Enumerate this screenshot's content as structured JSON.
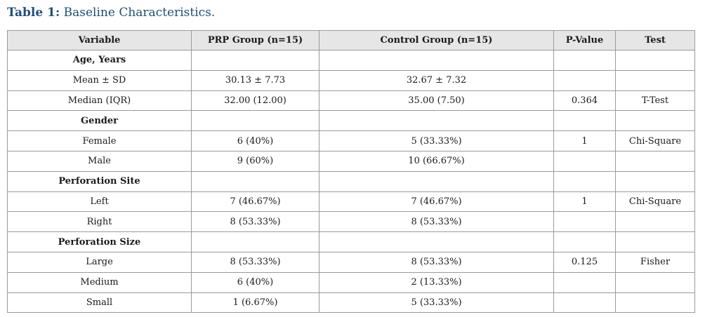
{
  "caption": {
    "label": "Table 1:",
    "text": "Baseline Characteristics."
  },
  "table": {
    "headers": [
      "Variable",
      "PRP Group (n=15)",
      "Control Group (n=15)",
      "P-Value",
      "Test"
    ],
    "rows": [
      {
        "type": "group",
        "cells": [
          "Age, Years",
          "",
          "",
          "",
          ""
        ]
      },
      {
        "type": "data",
        "cells": [
          "Mean ± SD",
          "30.13 ± 7.73",
          "32.67 ± 7.32",
          "",
          ""
        ]
      },
      {
        "type": "data",
        "cells": [
          "Median (IQR)",
          "32.00 (12.00)",
          "35.00 (7.50)",
          "0.364",
          "T-Test"
        ]
      },
      {
        "type": "group",
        "cells": [
          "Gender",
          "",
          "",
          "",
          ""
        ]
      },
      {
        "type": "data",
        "cells": [
          "Female",
          "6 (40%)",
          "5 (33.33%)",
          "1",
          "Chi-Square"
        ]
      },
      {
        "type": "data",
        "cells": [
          "Male",
          "9 (60%)",
          "10 (66.67%)",
          "",
          ""
        ]
      },
      {
        "type": "group",
        "cells": [
          "Perforation Site",
          "",
          "",
          "",
          ""
        ]
      },
      {
        "type": "data",
        "cells": [
          "Left",
          "7 (46.67%)",
          "7 (46.67%)",
          "1",
          "Chi-Square"
        ]
      },
      {
        "type": "data",
        "cells": [
          "Right",
          "8 (53.33%)",
          "8 (53.33%)",
          "",
          ""
        ]
      },
      {
        "type": "group",
        "cells": [
          "Perforation Size",
          "",
          "",
          "",
          ""
        ]
      },
      {
        "type": "data",
        "cells": [
          "Large",
          "8 (53.33%)",
          "8 (53.33%)",
          "0.125",
          "Fisher"
        ]
      },
      {
        "type": "data",
        "cells": [
          "Medium",
          "6 (40%)",
          "2 (13.33%)",
          "",
          ""
        ]
      },
      {
        "type": "data",
        "cells": [
          "Small",
          "1 (6.67%)",
          "5 (33.33%)",
          "",
          ""
        ]
      }
    ]
  }
}
